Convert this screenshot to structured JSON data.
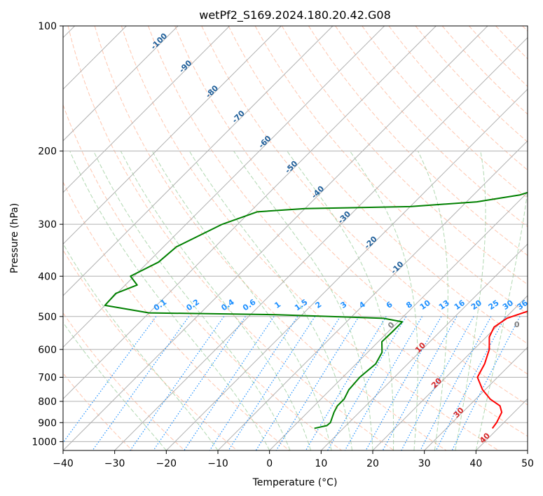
{
  "chart_data": {
    "type": "line",
    "subtype": "skew-t log-p diagram",
    "title": "wetPf2_S169.2024.180.20.42.G08",
    "xlabel": "Temperature (°C)",
    "ylabel": "Pressure (hPa)",
    "xlim": [
      -40,
      50
    ],
    "ylim": [
      1050,
      100
    ],
    "y_scale": "log",
    "grid": true,
    "x_ticks": [
      -40,
      -30,
      -20,
      -10,
      0,
      10,
      20,
      30,
      40,
      50
    ],
    "y_ticks": [
      100,
      200,
      300,
      400,
      500,
      600,
      700,
      800,
      900,
      1000
    ],
    "isotherm_labels": [
      "-100",
      "-90",
      "-80",
      "-70",
      "-60",
      "-50",
      "-40",
      "-30",
      "-20",
      "-10",
      "0",
      "10",
      "20",
      "30",
      "40"
    ],
    "mixing_ratio_labels": [
      "0.1",
      "0.2",
      "0.4",
      "0.6",
      "1",
      "1.5",
      "2",
      "3",
      "4",
      "6",
      "8",
      "10",
      "13",
      "16",
      "20",
      "25",
      "30",
      "36"
    ],
    "colors": {
      "temperature": "#ff0000",
      "dewpoint": "#008000",
      "isotherm": "#b0b0b0",
      "dry_adiabat": "#ffa07a",
      "moist_adiabat": "#90c890",
      "mixing_ratio": "#1e90ff"
    },
    "series": [
      {
        "name": "Temperature",
        "color": "#ff0000",
        "points": [
          {
            "p": 929,
            "t": 38.9
          },
          {
            "p": 900,
            "t": 38.6
          },
          {
            "p": 850,
            "t": 37.6
          },
          {
            "p": 820,
            "t": 36.0
          },
          {
            "p": 790,
            "t": 32.8
          },
          {
            "p": 750,
            "t": 29.5
          },
          {
            "p": 700,
            "t": 26.1
          },
          {
            "p": 650,
            "t": 24.9
          },
          {
            "p": 600,
            "t": 23.0
          },
          {
            "p": 560,
            "t": 20.6
          },
          {
            "p": 530,
            "t": 19.6
          },
          {
            "p": 505,
            "t": 20.4
          },
          {
            "p": 480,
            "t": 23.8
          },
          {
            "p": 455,
            "t": 22.3
          },
          {
            "p": 430,
            "t": 21.1
          },
          {
            "p": 400,
            "t": 21.6
          },
          {
            "p": 370,
            "t": 20.6
          },
          {
            "p": 340,
            "t": 18.8
          },
          {
            "p": 310,
            "t": 17.1
          },
          {
            "p": 290,
            "t": 16.2
          },
          {
            "p": 270,
            "t": 13.9
          },
          {
            "p": 250,
            "t": 11.2
          },
          {
            "p": 230,
            "t": 9.1
          },
          {
            "p": 210,
            "t": 6.2
          },
          {
            "p": 200,
            "t": 4.0
          },
          {
            "p": 180,
            "t": -0.1
          },
          {
            "p": 160,
            "t": -5.0
          },
          {
            "p": 140,
            "t": -11.0
          },
          {
            "p": 125,
            "t": -17.0
          },
          {
            "p": 110,
            "t": -22.6
          },
          {
            "p": 100,
            "t": -26.0
          }
        ]
      },
      {
        "name": "Dewpoint",
        "color": "#008000",
        "points": [
          {
            "p": 929,
            "t": 4.4
          },
          {
            "p": 915,
            "t": 6.3
          },
          {
            "p": 900,
            "t": 6.4
          },
          {
            "p": 850,
            "t": 5.1
          },
          {
            "p": 820,
            "t": 4.5
          },
          {
            "p": 790,
            "t": 4.5
          },
          {
            "p": 750,
            "t": 3.6
          },
          {
            "p": 700,
            "t": 3.3
          },
          {
            "p": 650,
            "t": 3.8
          },
          {
            "p": 610,
            "t": 2.8
          },
          {
            "p": 575,
            "t": 0.7
          },
          {
            "p": 545,
            "t": 0.8
          },
          {
            "p": 515,
            "t": 0.8
          },
          {
            "p": 505,
            "t": -3.5
          },
          {
            "p": 495,
            "t": -25.0
          },
          {
            "p": 490,
            "t": -50.0
          },
          {
            "p": 470,
            "t": -60.0
          },
          {
            "p": 440,
            "t": -60.2
          },
          {
            "p": 420,
            "t": -57.7
          },
          {
            "p": 400,
            "t": -60.7
          },
          {
            "p": 370,
            "t": -58.0
          },
          {
            "p": 340,
            "t": -57.5
          },
          {
            "p": 300,
            "t": -53.0
          },
          {
            "p": 280,
            "t": -48.6
          },
          {
            "p": 275,
            "t": -40.0
          },
          {
            "p": 272,
            "t": -20.0
          },
          {
            "p": 265,
            "t": -8.0
          },
          {
            "p": 255,
            "t": -1.0
          },
          {
            "p": 240,
            "t": 3.5
          },
          {
            "p": 228,
            "t": 1.4
          },
          {
            "p": 215,
            "t": 0.6
          },
          {
            "p": 200,
            "t": 1.6
          },
          {
            "p": 185,
            "t": -0.2
          },
          {
            "p": 170,
            "t": -4.2
          },
          {
            "p": 150,
            "t": -10.9
          },
          {
            "p": 130,
            "t": -17.6
          },
          {
            "p": 115,
            "t": -24.2
          },
          {
            "p": 100,
            "t": -26.8
          }
        ]
      }
    ],
    "parcel_marker": {
      "label": "0",
      "p": 530,
      "t": 24.0
    }
  }
}
